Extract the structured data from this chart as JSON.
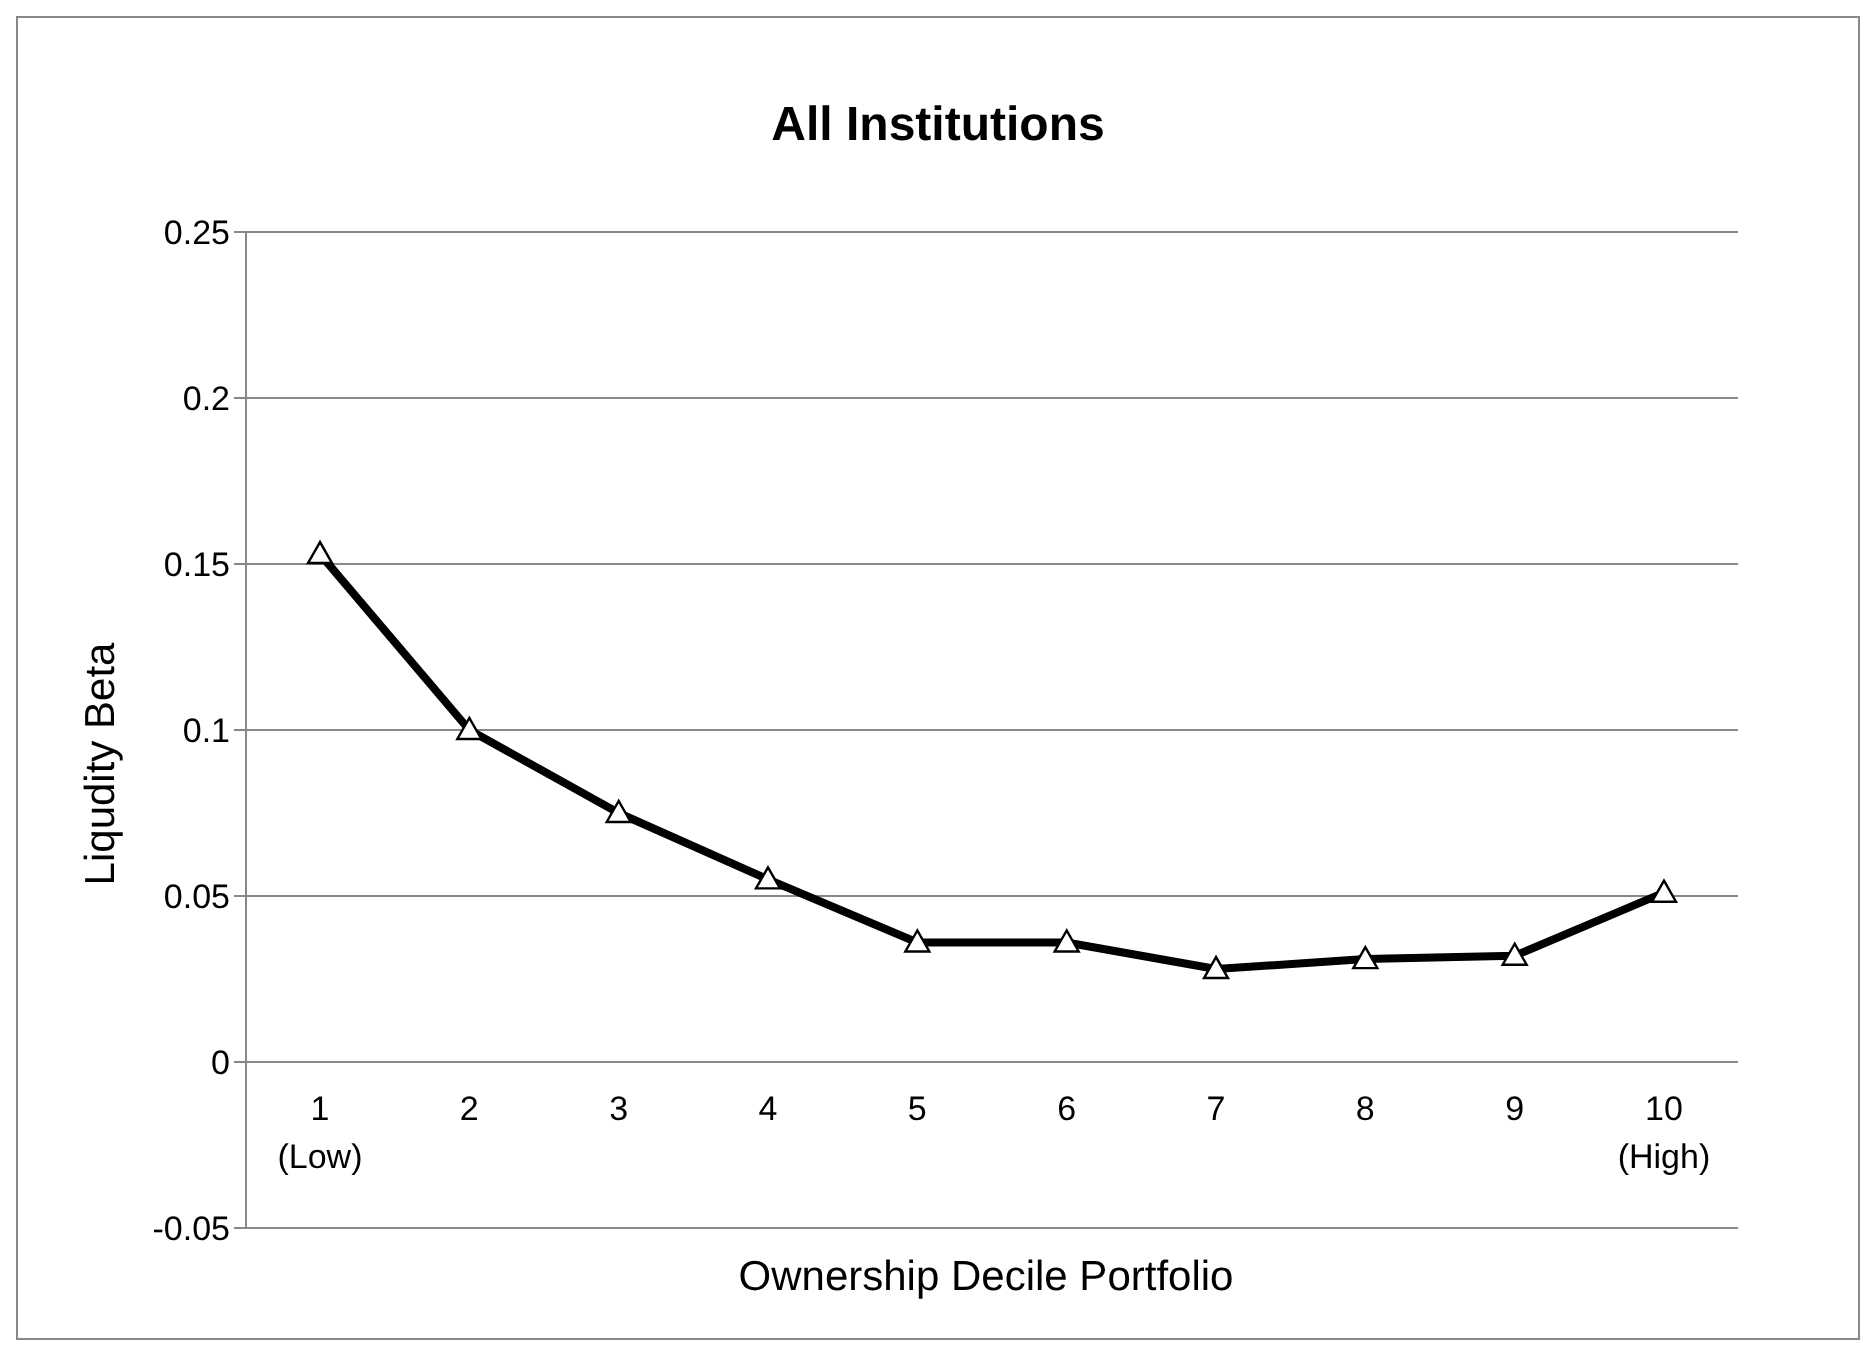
{
  "chart_data": {
    "type": "line",
    "title": "All Institutions",
    "xlabel": "Ownership Decile Portfolio",
    "ylabel": "Liqudity Beta",
    "categories": [
      "1\n(Low)",
      "2",
      "3",
      "4",
      "5",
      "6",
      "7",
      "8",
      "9",
      "10\n(High)"
    ],
    "series": [
      {
        "color": "#000000",
        "values": [
          0.153,
          0.1,
          0.075,
          0.055,
          0.036,
          0.036,
          0.028,
          0.031,
          0.032,
          0.051
        ]
      }
    ],
    "ylim": [
      -0.05,
      0.25
    ],
    "yticks": [
      -0.05,
      0,
      0.05,
      0.1,
      0.15,
      0.2,
      0.25
    ],
    "grid": "y",
    "legend": false,
    "marker": "triangle",
    "line_style": "solid"
  }
}
